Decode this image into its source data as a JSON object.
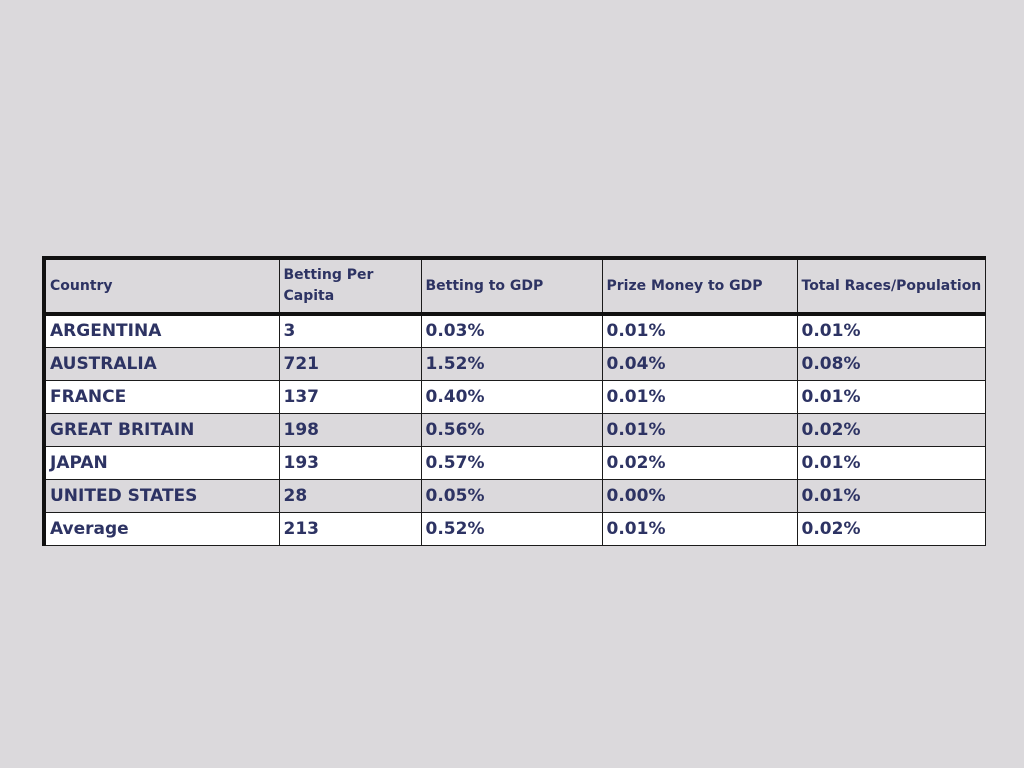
{
  "colors": {
    "background": "#dbd9dc",
    "text": "#2d3363",
    "row_alt": "#ffffff",
    "border": "#111111"
  },
  "chart_data": {
    "type": "table",
    "columns": [
      "Country",
      "Betting Per Capita",
      "Betting to GDP",
      "Prize Money to GDP",
      "Total Races/Population"
    ],
    "rows": [
      [
        "ARGENTINA",
        "3",
        "0.03%",
        "0.01%",
        "0.01%"
      ],
      [
        "AUSTRALIA",
        "721",
        "1.52%",
        "0.04%",
        "0.08%"
      ],
      [
        "FRANCE",
        "137",
        "0.40%",
        "0.01%",
        "0.01%"
      ],
      [
        "GREAT BRITAIN",
        "198",
        "0.56%",
        "0.01%",
        "0.02%"
      ],
      [
        "JAPAN",
        "193",
        "0.57%",
        "0.02%",
        "0.01%"
      ],
      [
        "UNITED STATES",
        "28",
        "0.05%",
        "0.00%",
        "0.01%"
      ],
      [
        "Average",
        "213",
        "0.52%",
        "0.01%",
        "0.02%"
      ]
    ]
  }
}
